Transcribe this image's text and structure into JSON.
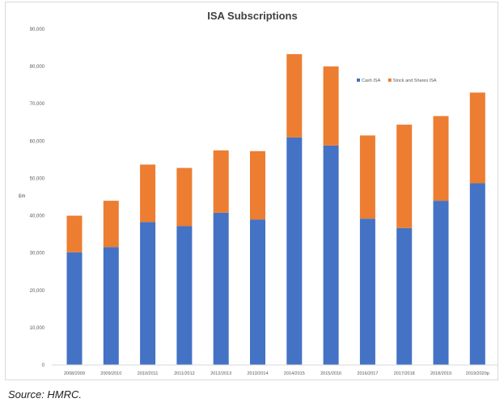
{
  "chart_data": {
    "type": "bar",
    "stacked": true,
    "title": "ISA Subscriptions",
    "ylabel": "£m",
    "xlabel": "",
    "ylim": [
      0,
      90000
    ],
    "yticks": [
      "0",
      "10,000",
      "20,000",
      "30,000",
      "40,000",
      "50,000",
      "60,000",
      "70,000",
      "80,000",
      "90,000"
    ],
    "grid": false,
    "legend_position": "right",
    "categories": [
      "2008/2009",
      "2009/2010",
      "2010/2011",
      "2011/2012",
      "2012/2013",
      "2013/2014",
      "2014/2015",
      "2015/2016",
      "2016/2017",
      "2017/2018",
      "2018/2019",
      "2019/2020p"
    ],
    "series": [
      {
        "name": "Cash ISA",
        "color": "#4472c4",
        "values": [
          30200,
          31600,
          38300,
          37200,
          40800,
          39000,
          61000,
          58800,
          39200,
          36700,
          44000,
          48700
        ]
      },
      {
        "name": "Stock and Shares ISA",
        "color": "#ed7d31",
        "values": [
          9800,
          12400,
          15400,
          15600,
          16700,
          18300,
          22300,
          21200,
          22300,
          27700,
          22700,
          24300
        ]
      }
    ]
  },
  "source_note": "Source: HMRC."
}
